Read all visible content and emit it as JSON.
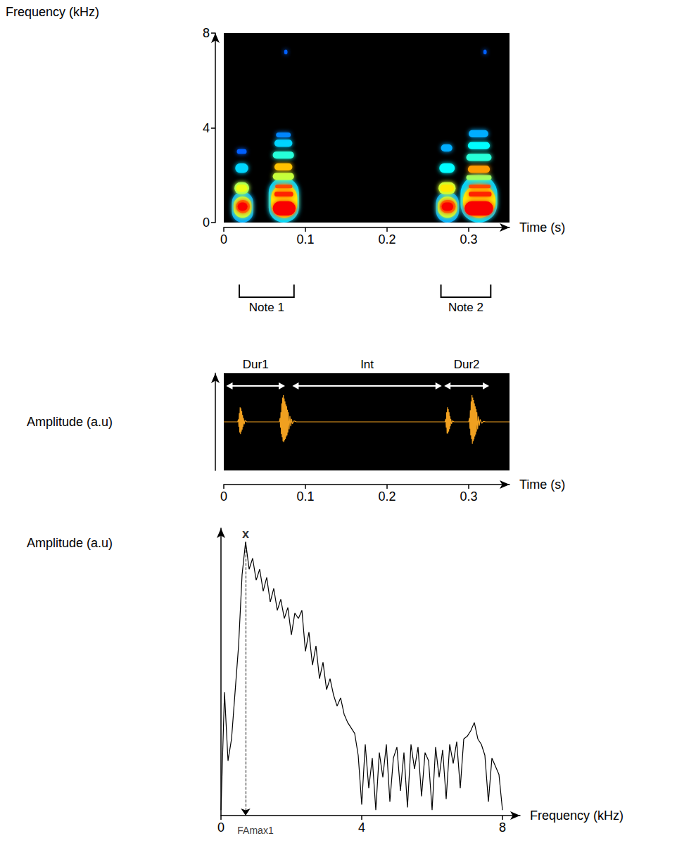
{
  "chart_data": [
    {
      "type": "spectrogram",
      "y_label": "Frequency (kHz)",
      "x_label": "Time (s)",
      "xlim": [
        0,
        0.35
      ],
      "xticks": [
        0,
        0.1,
        0.2,
        0.3
      ],
      "ylim": [
        0,
        8
      ],
      "yticks": [
        0,
        4,
        8
      ],
      "grid": false,
      "cells": [
        [
          0.01,
          0.036,
          0.0,
          1.3,
          0.25
        ],
        [
          0.012,
          0.034,
          0.2,
          1.1,
          0.6
        ],
        [
          0.015,
          0.032,
          0.4,
          0.95,
          0.85
        ],
        [
          0.017,
          0.029,
          0.5,
          0.85,
          1.0
        ],
        [
          0.013,
          0.031,
          1.2,
          1.7,
          0.55
        ],
        [
          0.015,
          0.029,
          1.3,
          1.6,
          0.65
        ],
        [
          0.014,
          0.03,
          2.1,
          2.5,
          0.3
        ],
        [
          0.016,
          0.028,
          2.9,
          3.1,
          0.15
        ],
        [
          0.055,
          0.092,
          0.0,
          1.9,
          0.3
        ],
        [
          0.058,
          0.09,
          0.2,
          1.6,
          0.7
        ],
        [
          0.06,
          0.088,
          0.3,
          0.9,
          1.0
        ],
        [
          0.062,
          0.085,
          1.1,
          1.3,
          0.95
        ],
        [
          0.063,
          0.084,
          1.45,
          1.6,
          0.9
        ],
        [
          0.06,
          0.086,
          1.8,
          2.1,
          0.6
        ],
        [
          0.062,
          0.084,
          2.2,
          2.5,
          0.75
        ],
        [
          0.06,
          0.086,
          2.7,
          3.0,
          0.4
        ],
        [
          0.062,
          0.084,
          3.2,
          3.5,
          0.3
        ],
        [
          0.064,
          0.082,
          3.6,
          3.8,
          0.2
        ],
        [
          0.26,
          0.288,
          0.0,
          1.3,
          0.25
        ],
        [
          0.262,
          0.286,
          0.2,
          1.1,
          0.6
        ],
        [
          0.265,
          0.284,
          0.4,
          0.95,
          0.85
        ],
        [
          0.267,
          0.281,
          0.5,
          0.85,
          1.0
        ],
        [
          0.263,
          0.284,
          1.2,
          1.7,
          0.6
        ],
        [
          0.265,
          0.282,
          1.3,
          1.6,
          0.7
        ],
        [
          0.264,
          0.283,
          2.1,
          2.5,
          0.35
        ],
        [
          0.266,
          0.28,
          3.0,
          3.3,
          0.25
        ],
        [
          0.29,
          0.335,
          0.0,
          2.0,
          0.3
        ],
        [
          0.293,
          0.333,
          0.2,
          1.6,
          0.7
        ],
        [
          0.295,
          0.33,
          0.3,
          0.9,
          1.0
        ],
        [
          0.3,
          0.328,
          1.1,
          1.3,
          0.95
        ],
        [
          0.3,
          0.327,
          1.45,
          1.6,
          0.9
        ],
        [
          0.297,
          0.328,
          1.8,
          2.0,
          0.55
        ],
        [
          0.299,
          0.326,
          2.1,
          2.4,
          0.8
        ],
        [
          0.297,
          0.328,
          2.6,
          2.9,
          0.4
        ],
        [
          0.299,
          0.326,
          3.1,
          3.4,
          0.35
        ],
        [
          0.3,
          0.324,
          3.6,
          3.9,
          0.25
        ],
        [
          0.074,
          0.078,
          7.1,
          7.3,
          0.15
        ],
        [
          0.318,
          0.322,
          7.1,
          7.3,
          0.15
        ]
      ],
      "notes": [
        {
          "label": "Note 1",
          "start": 0.019,
          "end": 0.086
        },
        {
          "label": "Note 2",
          "start": 0.266,
          "end": 0.327
        }
      ]
    },
    {
      "type": "line",
      "y_label": "Amplitude (a.u)",
      "x_label": "Time (s)",
      "xlim": [
        0,
        0.35
      ],
      "xticks": [
        0,
        0.1,
        0.2,
        0.3
      ],
      "ylim": [
        -1,
        1
      ],
      "tick_labels": "x",
      "grid": false,
      "color": "#f0a020",
      "x": [
        0,
        0.017,
        0.018,
        0.0185,
        0.019,
        0.0195,
        0.02,
        0.0205,
        0.021,
        0.0215,
        0.022,
        0.0225,
        0.023,
        0.0235,
        0.024,
        0.025,
        0.026,
        0.028,
        0.068,
        0.069,
        0.0695,
        0.07,
        0.0705,
        0.071,
        0.0715,
        0.072,
        0.0725,
        0.073,
        0.0735,
        0.074,
        0.0745,
        0.075,
        0.0755,
        0.076,
        0.0765,
        0.077,
        0.0775,
        0.078,
        0.0785,
        0.079,
        0.08,
        0.081,
        0.082,
        0.083,
        0.084,
        0.086,
        0.089,
        0.271,
        0.272,
        0.2725,
        0.273,
        0.2735,
        0.274,
        0.2745,
        0.275,
        0.2755,
        0.276,
        0.2765,
        0.277,
        0.2775,
        0.278,
        0.279,
        0.28,
        0.282,
        0.3,
        0.301,
        0.3015,
        0.302,
        0.3025,
        0.303,
        0.3035,
        0.304,
        0.3045,
        0.305,
        0.3055,
        0.306,
        0.3065,
        0.307,
        0.3075,
        0.308,
        0.3085,
        0.309,
        0.3095,
        0.31,
        0.311,
        0.312,
        0.313,
        0.314,
        0.316,
        0.318,
        0.321,
        0.35
      ],
      "values": [
        0,
        0,
        0.05,
        -0.1,
        0.18,
        -0.22,
        0.3,
        -0.25,
        0.28,
        -0.2,
        0.22,
        -0.16,
        0.14,
        -0.1,
        0.08,
        -0.05,
        0.03,
        0,
        0,
        0.08,
        -0.12,
        0.2,
        -0.25,
        0.38,
        -0.32,
        0.5,
        -0.4,
        0.55,
        -0.42,
        0.48,
        -0.38,
        0.42,
        -0.35,
        0.36,
        -0.3,
        0.32,
        -0.28,
        0.25,
        -0.22,
        0.2,
        -0.15,
        0.12,
        -0.09,
        0.06,
        -0.04,
        0.02,
        0,
        0,
        0.06,
        -0.12,
        0.2,
        -0.24,
        0.3,
        -0.24,
        0.26,
        -0.2,
        0.2,
        -0.15,
        0.12,
        -0.09,
        0.06,
        -0.04,
        0.02,
        0,
        0,
        0.08,
        -0.14,
        0.24,
        -0.28,
        0.42,
        -0.35,
        0.55,
        -0.45,
        0.5,
        -0.4,
        0.45,
        -0.36,
        0.38,
        -0.3,
        0.32,
        -0.26,
        0.26,
        -0.2,
        0.2,
        -0.15,
        0.11,
        -0.08,
        0.05,
        -0.03,
        0.01,
        0,
        0
      ],
      "spans": [
        {
          "label": "Dur1",
          "start": 0.003,
          "end": 0.075
        },
        {
          "label": "Int",
          "start": 0.084,
          "end": 0.267
        },
        {
          "label": "Dur2",
          "start": 0.27,
          "end": 0.325
        }
      ]
    },
    {
      "type": "line",
      "y_label": "Amplitude (a.u)",
      "x_label": "Frequency (kHz)",
      "xlim": [
        0,
        8.5
      ],
      "xticks": [
        0,
        4,
        8
      ],
      "ylim": [
        0,
        1.05
      ],
      "tick_labels": "x",
      "grid": false,
      "color": "#000000",
      "x": [
        0,
        0.1,
        0.2,
        0.3,
        0.4,
        0.5,
        0.6,
        0.7,
        0.8,
        0.9,
        1,
        1.1,
        1.2,
        1.3,
        1.4,
        1.5,
        1.6,
        1.7,
        1.8,
        1.9,
        2,
        2.1,
        2.2,
        2.3,
        2.4,
        2.5,
        2.6,
        2.7,
        2.8,
        2.9,
        3,
        3.1,
        3.2,
        3.3,
        3.4,
        3.5,
        3.6,
        3.7,
        3.8,
        3.9,
        4,
        4.1,
        4.2,
        4.3,
        4.4,
        4.5,
        4.6,
        4.7,
        4.8,
        4.9,
        5,
        5.1,
        5.2,
        5.3,
        5.4,
        5.5,
        5.6,
        5.7,
        5.8,
        5.9,
        6,
        6.1,
        6.2,
        6.3,
        6.4,
        6.5,
        6.6,
        6.7,
        6.8,
        6.9,
        7,
        7.1,
        7.2,
        7.3,
        7.4,
        7.5,
        7.6,
        7.7,
        7.8,
        7.9,
        8
      ],
      "values": [
        0.02,
        0.45,
        0.2,
        0.28,
        0.45,
        0.62,
        0.88,
        1.0,
        0.9,
        0.94,
        0.86,
        0.9,
        0.82,
        0.87,
        0.78,
        0.83,
        0.75,
        0.79,
        0.72,
        0.76,
        0.66,
        0.74,
        0.72,
        0.75,
        0.6,
        0.67,
        0.55,
        0.62,
        0.5,
        0.56,
        0.46,
        0.5,
        0.44,
        0.4,
        0.43,
        0.37,
        0.34,
        0.32,
        0.3,
        0.22,
        0.04,
        0.26,
        0.1,
        0.21,
        0.02,
        0.23,
        0.14,
        0.26,
        0.05,
        0.21,
        0.25,
        0.09,
        0.23,
        0.03,
        0.26,
        0.17,
        0.25,
        0.07,
        0.23,
        0.2,
        0.02,
        0.25,
        0.14,
        0.24,
        0.06,
        0.26,
        0.19,
        0.27,
        0.1,
        0.28,
        0.29,
        0.31,
        0.34,
        0.28,
        0.26,
        0.22,
        0.05,
        0.21,
        0.18,
        0.15,
        0.02
      ],
      "peak": {
        "x": 0.7,
        "y": 1.0,
        "mark_label": "x",
        "axis_label": "FAmax1"
      }
    }
  ]
}
